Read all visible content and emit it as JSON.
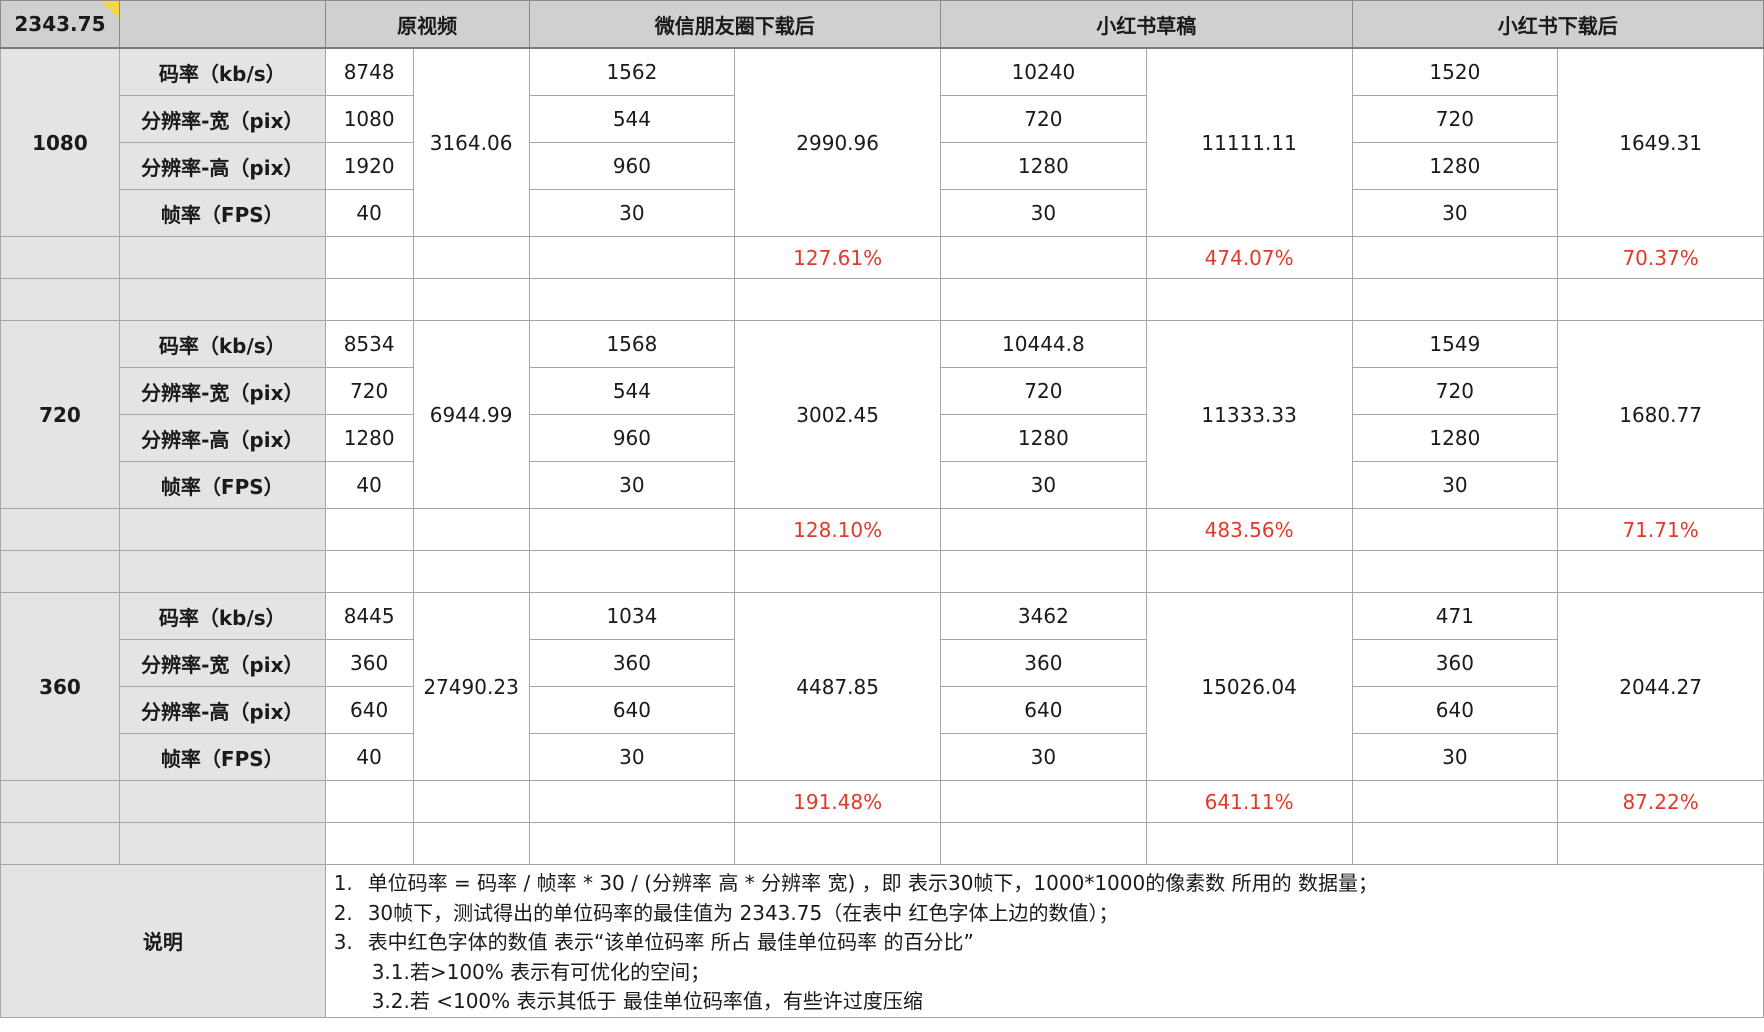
{
  "corner_value": "2343.75",
  "headers": [
    "原视频",
    "微信朋友圈下载后",
    "小红书草稿",
    "小红书下载后"
  ],
  "metric_labels": [
    "码率（kb/s）",
    "分辨率-宽（pix）",
    "分辨率-高（pix）",
    "帧率（FPS）"
  ],
  "groups": [
    {
      "label": "1080",
      "cols": [
        {
          "values": [
            "8748",
            "1080",
            "1920",
            "40"
          ],
          "unit": "3164.06",
          "pct": ""
        },
        {
          "values": [
            "1562",
            "544",
            "960",
            "30"
          ],
          "unit": "2990.96",
          "pct": "127.61%"
        },
        {
          "values": [
            "10240",
            "720",
            "1280",
            "30"
          ],
          "unit": "11111.11",
          "pct": "474.07%"
        },
        {
          "values": [
            "1520",
            "720",
            "1280",
            "30"
          ],
          "unit": "1649.31",
          "pct": "70.37%"
        }
      ]
    },
    {
      "label": "720",
      "cols": [
        {
          "values": [
            "8534",
            "720",
            "1280",
            "40"
          ],
          "unit": "6944.99",
          "pct": ""
        },
        {
          "values": [
            "1568",
            "544",
            "960",
            "30"
          ],
          "unit": "3002.45",
          "pct": "128.10%"
        },
        {
          "values": [
            "10444.8",
            "720",
            "1280",
            "30"
          ],
          "unit": "11333.33",
          "pct": "483.56%"
        },
        {
          "values": [
            "1549",
            "720",
            "1280",
            "30"
          ],
          "unit": "1680.77",
          "pct": "71.71%"
        }
      ]
    },
    {
      "label": "360",
      "cols": [
        {
          "values": [
            "8445",
            "360",
            "640",
            "40"
          ],
          "unit": "27490.23",
          "pct": ""
        },
        {
          "values": [
            "1034",
            "360",
            "640",
            "30"
          ],
          "unit": "4487.85",
          "pct": "191.48%"
        },
        {
          "values": [
            "3462",
            "360",
            "640",
            "30"
          ],
          "unit": "15026.04",
          "pct": "641.11%"
        },
        {
          "values": [
            "471",
            "360",
            "640",
            "30"
          ],
          "unit": "2044.27",
          "pct": "87.22%"
        }
      ]
    }
  ],
  "notes": {
    "label": "说明",
    "lines": [
      {
        "num": "1.",
        "text": "单位码率 = 码率 / 帧率 * 30 / (分辨率 高 * 分辨率 宽) ，即 表示30帧下，1000*1000的像素数 所用的 数据量；"
      },
      {
        "num": "2.",
        "text": "30帧下，测试得出的单位码率的最佳值为 2343.75（在表中 红色字体上边的数值）；"
      },
      {
        "num": "3.",
        "text": "表中红色字体的数值 表示“该单位码率 所占 最佳单位码率 的百分比”"
      },
      {
        "num": "",
        "text": "3.1.若>100% 表示有可优化的空间；"
      },
      {
        "num": "",
        "text": "3.2.若 <100% 表示其低于 最佳单位码率值，有些许过度压缩"
      }
    ]
  }
}
